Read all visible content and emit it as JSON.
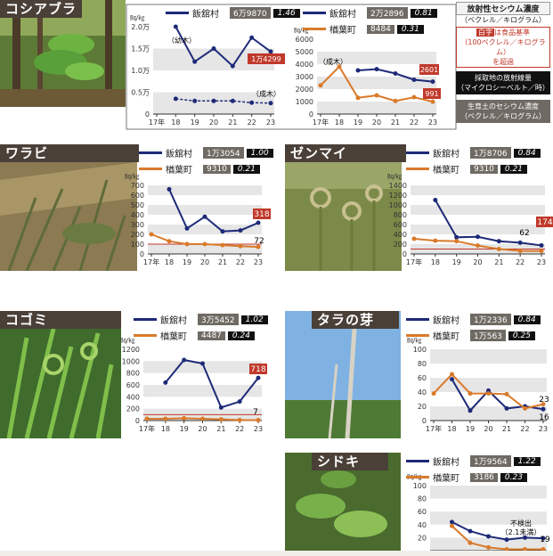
{
  "colors": {
    "iitate": "#1e2a78",
    "narahamachi": "#d97a2b",
    "threshold": "#c0392b",
    "radiation": "#7b8fd8",
    "band": "#e6e6e6",
    "title_bg": "#4a4038"
  },
  "common": {
    "unit": "㏃/㎏",
    "year_first_label": "17年",
    "village1": "飯舘村",
    "village2": "楢葉町"
  },
  "legend_box": {
    "cesium_title": "放射性セシウム濃度",
    "cesium_unit": "（ベクレル／キログラム）",
    "red_label": "白字",
    "red_text": "は食品基準",
    "red_text2": "（100ベクレル／キログラム）",
    "red_text3": "を超過",
    "radiation_title": "採取地の放射線量",
    "radiation_unit": "（マイクロシーベルト／時）",
    "soil_title": "生育土のセシウム濃度",
    "soil_unit": "（ベクレル／キログラム）"
  },
  "panels": {
    "koshiabura": {
      "name": "コシアブラ",
      "left": {
        "soil": "6万9870",
        "rad": "1.46",
        "ylabels": [
          "2.0万",
          "1.5万",
          "1.0万",
          "0.5万",
          "0"
        ],
        "ylim": [
          0,
          20000
        ]
      },
      "right": {
        "soil": "2万2896",
        "rad": "0.81",
        "soil2": "8484",
        "rad2": "0.31",
        "ylabels": [
          "6000",
          "5000",
          "4000",
          "3000",
          "2000",
          "1000",
          "0"
        ],
        "ylim": [
          0,
          6000
        ]
      },
      "notes": {
        "young": "（幼木）",
        "adult": "（成木）",
        "adult2": "（成木）"
      },
      "labels": {
        "iitate_young_last": "1万4299",
        "iitate_adult_last": "2601",
        "naraha_adult_last": "991"
      }
    },
    "warabi": {
      "name": "ワラビ",
      "soil1": "1万3054",
      "rad1": "1.00",
      "soil2": "9310",
      "rad2": "0.21",
      "ylabels": [
        "700",
        "600",
        "500",
        "400",
        "300",
        "200",
        "100",
        "0"
      ],
      "ylim": [
        0,
        700
      ],
      "labels": {
        "last1": "318",
        "last2": "72"
      }
    },
    "zenmai": {
      "name": "ゼンマイ",
      "soil1": "1万8706",
      "rad1": "0.84",
      "soil2": "9310",
      "rad2": "0.21",
      "ylabels": [
        "1400",
        "1200",
        "1000",
        "800",
        "600",
        "400",
        "200",
        "0"
      ],
      "ylim": [
        0,
        1400
      ],
      "labels": {
        "last1": "174",
        "mid": "62"
      }
    },
    "kogomi": {
      "name": "コゴミ",
      "soil1": "3万5452",
      "rad1": "1.02",
      "soil2": "4487",
      "rad2": "0.24",
      "ylabels": [
        "1200",
        "1000",
        "800",
        "600",
        "400",
        "200",
        "0"
      ],
      "ylim": [
        0,
        1200
      ],
      "labels": {
        "last1": "718",
        "last2": "7"
      }
    },
    "taranome": {
      "name": "タラの芽",
      "soil1": "1万2336",
      "rad1": "0.84",
      "soil2": "1万563",
      "rad2": "0.25",
      "ylabels": [
        "100",
        "80",
        "60",
        "40",
        "20",
        "0"
      ],
      "ylim": [
        0,
        100
      ],
      "labels": {
        "last1": "16",
        "last2": "23"
      }
    },
    "shidoki": {
      "name": "シドキ",
      "soil1": "1万9564",
      "rad1": "1.22",
      "soil2": "3186",
      "rad2": "0.23",
      "ylabels": [
        "100",
        "80",
        "60",
        "40",
        "20"
      ],
      "ylim": [
        0,
        100
      ],
      "labels": {
        "last1": "19",
        "nd": "不検出",
        "nd2": "（2.1未満）"
      }
    }
  },
  "chart_data": [
    {
      "type": "line",
      "title": "コシアブラ 飯舘村",
      "ylabel": "㏃/㎏",
      "ylim": [
        0,
        20000
      ],
      "categories": [
        "17年",
        "18",
        "19",
        "20",
        "21",
        "22",
        "23"
      ],
      "series": [
        {
          "name": "飯舘村",
          "values": [
            null,
            20000,
            12000,
            15000,
            11000,
            17500,
            14299
          ]
        },
        {
          "name": "飯舘村",
          "values": [
            null,
            3500,
            3000,
            3000,
            3000,
            2600,
            2500
          ]
        }
      ]
    },
    {
      "type": "line",
      "title": "コシアブラ 飯舘村・楢葉町",
      "ylabel": "㏃/㎏",
      "ylim": [
        0,
        6000
      ],
      "categories": [
        "17年",
        "18",
        "19",
        "20",
        "21",
        "22",
        "23"
      ],
      "series": [
        {
          "name": "飯舘村",
          "values": [
            null,
            null,
            3500,
            3600,
            3250,
            2750,
            2601
          ]
        },
        {
          "name": "楢葉町",
          "values": [
            2300,
            3800,
            1300,
            1500,
            1050,
            1350,
            991
          ]
        }
      ]
    },
    {
      "type": "line",
      "title": "ワラビ",
      "ylabel": "㏃/㎏",
      "ylim": [
        0,
        700
      ],
      "categories": [
        "17年",
        "18",
        "19",
        "20",
        "21",
        "22",
        "23"
      ],
      "series": [
        {
          "name": "飯舘村",
          "values": [
            null,
            660,
            260,
            380,
            230,
            240,
            318
          ]
        },
        {
          "name": "楢葉町",
          "values": [
            200,
            130,
            100,
            100,
            90,
            80,
            72
          ]
        }
      ]
    },
    {
      "type": "line",
      "title": "ゼンマイ",
      "ylabel": "㏃/㎏",
      "ylim": [
        0,
        1400
      ],
      "categories": [
        "17年",
        "18",
        "19",
        "20",
        "21",
        "22",
        "23"
      ],
      "series": [
        {
          "name": "飯舘村",
          "values": [
            null,
            1100,
            340,
            350,
            260,
            230,
            174
          ]
        },
        {
          "name": "楢葉町",
          "values": [
            310,
            270,
            260,
            170,
            100,
            62,
            60
          ]
        }
      ]
    },
    {
      "type": "line",
      "title": "コゴミ",
      "ylabel": "㏃/㎏",
      "ylim": [
        0,
        1200
      ],
      "categories": [
        "17年",
        "18",
        "19",
        "20",
        "21",
        "22",
        "23"
      ],
      "series": [
        {
          "name": "飯舘村",
          "values": [
            null,
            640,
            1020,
            960,
            220,
            320,
            718
          ]
        },
        {
          "name": "楢葉町",
          "values": [
            30,
            30,
            40,
            30,
            20,
            10,
            7
          ]
        }
      ]
    },
    {
      "type": "line",
      "title": "タラの芽",
      "ylabel": "㏃/㎏",
      "ylim": [
        0,
        100
      ],
      "categories": [
        "17年",
        "18",
        "19",
        "20",
        "21",
        "22",
        "23"
      ],
      "series": [
        {
          "name": "飯舘村",
          "values": [
            null,
            58,
            14,
            42,
            17,
            20,
            16
          ]
        },
        {
          "name": "楢葉町",
          "values": [
            38,
            65,
            38,
            38,
            37,
            17,
            23
          ]
        }
      ]
    },
    {
      "type": "line",
      "title": "シドキ",
      "ylabel": "㏃/㎏",
      "ylim": [
        0,
        100
      ],
      "categories": [
        "17年",
        "18",
        "19",
        "20",
        "21",
        "22",
        "23"
      ],
      "series": [
        {
          "name": "飯舘村",
          "values": [
            null,
            44,
            30,
            22,
            17,
            20,
            19
          ]
        },
        {
          "name": "楢葉町",
          "values": [
            null,
            38,
            12,
            5,
            2,
            2,
            2
          ]
        }
      ]
    }
  ]
}
